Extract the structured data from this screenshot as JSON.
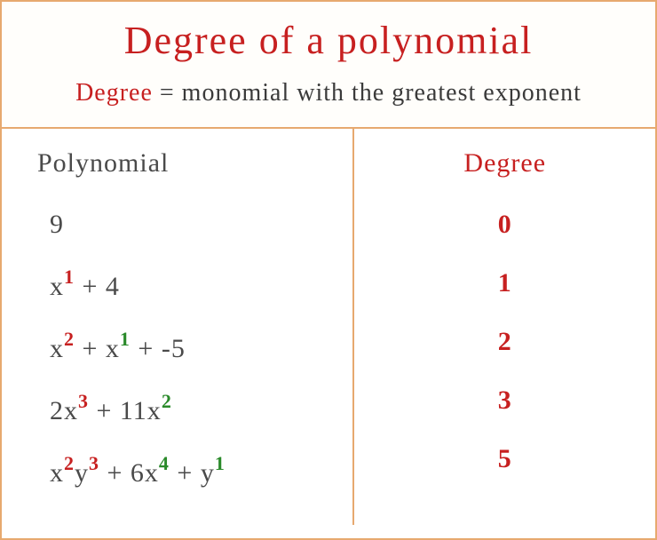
{
  "title": "Degree  of  a  polynomial",
  "subtitle_degree": "Degree",
  "subtitle_rest": " = monomial  with  the  greatest  exponent",
  "headers": {
    "polynomial": "Polynomial",
    "degree": "Degree"
  },
  "rows": [
    {
      "terms": [
        {
          "coef": "9",
          "parts": []
        }
      ],
      "degree": "0"
    },
    {
      "terms": [
        {
          "coef": "x",
          "parts": [
            {
              "exp": "1",
              "color": "red"
            }
          ]
        },
        {
          "op": " + ",
          "coef": "4",
          "parts": []
        }
      ],
      "degree": "1"
    },
    {
      "terms": [
        {
          "coef": "x",
          "parts": [
            {
              "exp": "2",
              "color": "red"
            }
          ]
        },
        {
          "op": " + ",
          "coef": "x",
          "parts": [
            {
              "exp": "1",
              "color": "green"
            }
          ]
        },
        {
          "op": " + ",
          "coef": "-5",
          "parts": []
        }
      ],
      "degree": "2"
    },
    {
      "terms": [
        {
          "coef": "2x",
          "parts": [
            {
              "exp": "3",
              "color": "red"
            }
          ]
        },
        {
          "op": " + ",
          "coef": "11x",
          "parts": [
            {
              "exp": "2",
              "color": "green"
            }
          ]
        }
      ],
      "degree": "3"
    },
    {
      "terms": [
        {
          "coef": "x",
          "parts": [
            {
              "exp": "2",
              "color": "red"
            }
          ],
          "tail": "y",
          "tailparts": [
            {
              "exp": "3",
              "color": "red"
            }
          ]
        },
        {
          "op": " + ",
          "coef": "6x",
          "parts": [
            {
              "exp": "4",
              "color": "green"
            }
          ]
        },
        {
          "op": " + ",
          "coef": "y",
          "parts": [
            {
              "exp": "1",
              "color": "green"
            }
          ]
        }
      ],
      "degree": "5"
    }
  ],
  "colors": {
    "border": "#e7a96f",
    "title": "#c72020",
    "text": "#4a4a4a",
    "exp_red": "#c72020",
    "exp_green": "#2a8a2a",
    "background": "#ffffff"
  },
  "fontsize": {
    "title": 44,
    "subtitle": 28,
    "header": 30,
    "row": 30,
    "exponent": 22
  }
}
